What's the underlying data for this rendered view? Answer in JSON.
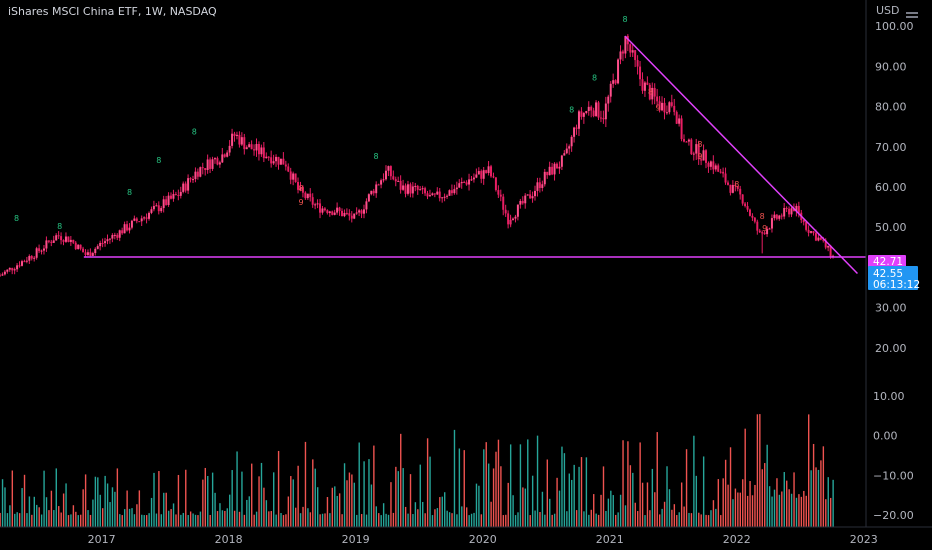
{
  "chart": {
    "title": "iShares MSCI China ETF, 1W, NASDAQ",
    "currency_label": "USD"
  },
  "colors": {
    "background": "#000000",
    "up_candle": "#e91e63",
    "down_candle": "#e91e63",
    "line": "#e040fb",
    "volume_up": "#26a69a",
    "volume_down": "#ef5350",
    "setup_up": "#26c281",
    "setup_down": "#ef5350",
    "badge_magenta": "#e040fb",
    "badge_blue": "#2196f3"
  },
  "chart_data": {
    "type": "candlestick",
    "price_axis": {
      "ticks": [
        100,
        90,
        80,
        70,
        60,
        50,
        30,
        20
      ],
      "tick_labels": [
        "100.00",
        "90.00",
        "80.00",
        "70.00",
        "60.00",
        "50.00",
        "30.00",
        "20.00"
      ],
      "ylim": [
        16,
        103
      ]
    },
    "volume_axis": {
      "ticks": [
        10,
        0,
        -10,
        -20
      ],
      "tick_labels": [
        "10.00",
        "0.00",
        "−10.00",
        "−20.00"
      ],
      "ylim": [
        -23,
        13
      ]
    },
    "x_axis": {
      "ticks": [
        2017,
        2018,
        2019,
        2020,
        2021,
        2022,
        2023
      ],
      "tick_labels": [
        "2017",
        "2018",
        "2019",
        "2020",
        "2021",
        "2022",
        "2023"
      ],
      "xlim": [
        2016.2,
        2022.97
      ]
    },
    "price_path": [
      [
        2016.2,
        38
      ],
      [
        2016.35,
        41
      ],
      [
        2016.5,
        44
      ],
      [
        2016.65,
        48
      ],
      [
        2016.75,
        47
      ],
      [
        2016.88,
        43
      ],
      [
        2017.0,
        46
      ],
      [
        2017.2,
        50
      ],
      [
        2017.4,
        54
      ],
      [
        2017.6,
        58
      ],
      [
        2017.75,
        64
      ],
      [
        2017.95,
        68
      ],
      [
        2018.05,
        73
      ],
      [
        2018.15,
        70
      ],
      [
        2018.3,
        68
      ],
      [
        2018.45,
        66
      ],
      [
        2018.55,
        59
      ],
      [
        2018.7,
        55
      ],
      [
        2018.85,
        54
      ],
      [
        2019.0,
        52
      ],
      [
        2019.15,
        60
      ],
      [
        2019.25,
        64
      ],
      [
        2019.35,
        60
      ],
      [
        2019.5,
        59
      ],
      [
        2019.6,
        57
      ],
      [
        2019.75,
        59
      ],
      [
        2019.9,
        62
      ],
      [
        2020.05,
        64
      ],
      [
        2020.2,
        52
      ],
      [
        2020.35,
        57
      ],
      [
        2020.5,
        63
      ],
      [
        2020.65,
        67
      ],
      [
        2020.75,
        77
      ],
      [
        2020.85,
        80
      ],
      [
        2020.95,
        78
      ],
      [
        2021.05,
        88
      ],
      [
        2021.12,
        97
      ],
      [
        2021.25,
        86
      ],
      [
        2021.4,
        80
      ],
      [
        2021.5,
        81
      ],
      [
        2021.58,
        71
      ],
      [
        2021.68,
        69
      ],
      [
        2021.8,
        66
      ],
      [
        2021.95,
        60
      ],
      [
        2022.05,
        57
      ],
      [
        2022.18,
        48
      ],
      [
        2022.3,
        52
      ],
      [
        2022.45,
        55
      ],
      [
        2022.55,
        50
      ],
      [
        2022.68,
        46
      ],
      [
        2022.76,
        42.5
      ]
    ],
    "lows_to_mark": [
      [
        2022.2,
        43.5
      ],
      [
        2020.22,
        50
      ]
    ],
    "setup_counts_green": [
      {
        "x": 2016.33,
        "y": 51.5,
        "label": "8"
      },
      {
        "x": 2016.67,
        "y": 49.5,
        "label": "8"
      },
      {
        "x": 2017.22,
        "y": 58,
        "label": "8"
      },
      {
        "x": 2017.45,
        "y": 66,
        "label": "8"
      },
      {
        "x": 2017.73,
        "y": 73,
        "label": "8"
      },
      {
        "x": 2019.16,
        "y": 67,
        "label": "8"
      },
      {
        "x": 2020.7,
        "y": 78.5,
        "label": "8"
      },
      {
        "x": 2020.88,
        "y": 86.5,
        "label": "8"
      },
      {
        "x": 2021.12,
        "y": 101,
        "label": "8"
      }
    ],
    "setup_counts_red": [
      {
        "x": 2018.57,
        "y": 59,
        "label": "8"
      },
      {
        "x": 2018.57,
        "y": 55.5,
        "label": "9"
      },
      {
        "x": 2021.32,
        "y": 83,
        "label": "8"
      },
      {
        "x": 2021.38,
        "y": 79,
        "label": "9"
      },
      {
        "x": 2021.71,
        "y": 70,
        "label": "8"
      },
      {
        "x": 2021.71,
        "y": 67,
        "label": "9"
      },
      {
        "x": 2022.0,
        "y": 60,
        "label": "8"
      },
      {
        "x": 2022.2,
        "y": 52,
        "label": "8"
      },
      {
        "x": 2022.22,
        "y": 49,
        "label": "9"
      }
    ],
    "lines": [
      {
        "name": "support",
        "x1": 2016.86,
        "y1": 42.6,
        "x2": 2022.97,
        "y2": 42.6
      },
      {
        "name": "downtrend",
        "x1": 2021.12,
        "y1": 97.5,
        "x2": 2022.95,
        "y2": 38.5
      }
    ],
    "last_price": "42.71",
    "last_close": "42.55",
    "countdown": "06:13:12"
  }
}
